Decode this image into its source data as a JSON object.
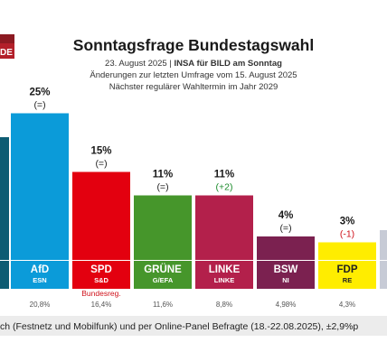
{
  "logo": {
    "text": "DE",
    "color": "#b3202a"
  },
  "header": {
    "title": "Sonntagsfrage Bundestagswahl",
    "date_line_prefix": "23. August 2025 | ",
    "date_line_bold": "INSA für BILD am Sonntag",
    "change_line": "Änderungen zur letzten Umfrage vom 15. August 2025",
    "next_election_line": "Nächster regulärer Wahltermin im Jahr 2029"
  },
  "chart_data": {
    "type": "bar",
    "title": "Sonntagsfrage Bundestagswahl",
    "categories": [
      "",
      "AfD",
      "SPD",
      "GRÜNE",
      "LINKE",
      "BSW",
      "FDP",
      ""
    ],
    "groups": [
      "",
      "ESN",
      "S&D",
      "G/EFA",
      "LINKE",
      "NI",
      "RE",
      ""
    ],
    "values": [
      null,
      25,
      15,
      11,
      11,
      4,
      3,
      null
    ],
    "value_labels": [
      "",
      "25%",
      "15%",
      "11%",
      "11%",
      "4%",
      "3%",
      ""
    ],
    "changes": [
      "",
      "(=)",
      "(=)",
      "(=)",
      "(+2)",
      "(=)",
      "(-1)",
      ""
    ],
    "change_colors": [
      "#222222",
      "#222222",
      "#222222",
      "#222222",
      "#1a8a2a",
      "#222222",
      "#d0121b",
      "#222222"
    ],
    "previous_results": [
      "",
      "20,8%",
      "16,4%",
      "11,6%",
      "8,8%",
      "4,98%",
      "4,3%",
      ""
    ],
    "notes": [
      "",
      "",
      "Bundesreg.",
      "",
      "",
      "",
      "",
      ""
    ],
    "colors": [
      "#0d5c73",
      "#0b9bd9",
      "#e3000f",
      "#46962b",
      "#b3204b",
      "#7b2150",
      "#ffed00",
      "#c7cbd6"
    ],
    "label_text_colors": [
      "#ffffff",
      "#ffffff",
      "#ffffff",
      "#ffffff",
      "#ffffff",
      "#ffffff",
      "#222222",
      "#ffffff"
    ],
    "ylim": [
      0,
      27
    ],
    "xlabel": "",
    "ylabel": "",
    "grid": false,
    "legend": "none"
  },
  "footer": {
    "text": "ch (Festnetz und Mobilfunk) und per Online-Panel Befragte (18.-22.08.2025), ±2,9%p"
  }
}
